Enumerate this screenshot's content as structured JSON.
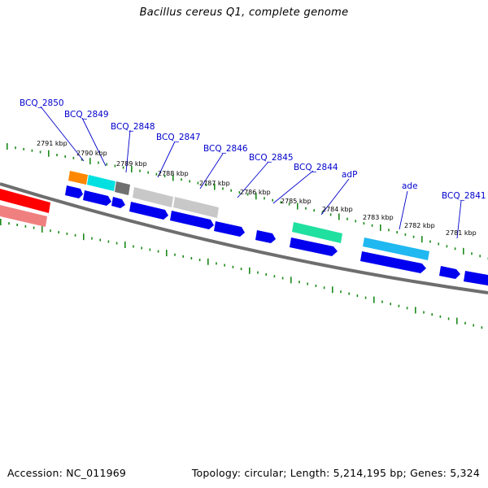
{
  "title": "Bacillus cereus Q1, complete genome",
  "footer": {
    "accession": "Accession: NC_011969",
    "summary": "Topology: circular; Length: 5,214,195 bp; Genes: 5,324"
  },
  "gene_labels": [
    "BCQ_2850",
    "BCQ_2849",
    "BCQ_2848",
    "BCQ_2847",
    "BCQ_2846",
    "BCQ_2845",
    "BCQ_2844",
    "adP",
    "ade",
    "BCQ_2841"
  ],
  "tick_labels": [
    "2791 kbp",
    "2790 kbp",
    "2789 kbp",
    "2788 kbp",
    "2787 kbp",
    "2786 kbp",
    "2785 kbp",
    "2784 kbp",
    "2783 kbp",
    "2782 kbp",
    "2781 kbp"
  ],
  "colors": {
    "gene_label": "#0000cc",
    "backbone": "#808080",
    "cds_forward": "#0000ee",
    "tick": "#1a8a1a",
    "red_feature": "#ff0000",
    "pink_feature": "#f08080",
    "orange_feature": "#ff8800",
    "cyan_feature": "#00e0e0",
    "dark_gray_feature": "#707070",
    "light_gray_feature": "#c8c8c8",
    "teal_feature": "#20e0a0",
    "sky_feature": "#20b8f0"
  }
}
